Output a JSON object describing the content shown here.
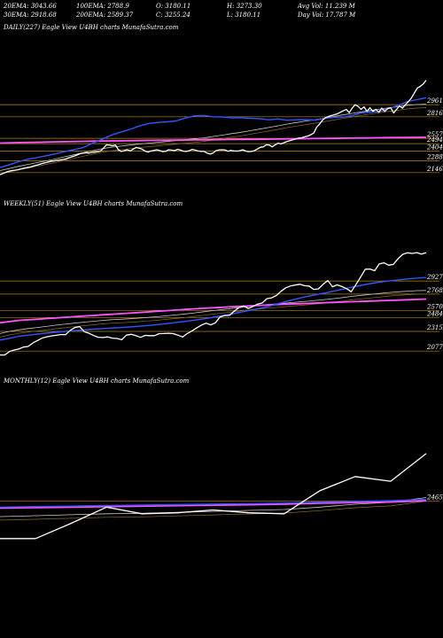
{
  "header": {
    "row1": [
      "20EMA: 3043.66",
      "100EMA: 2788.9",
      "O: 3180.11",
      "H: 3273.30",
      "Avg Vol: 11.239 M"
    ],
    "row2": [
      "30EMA: 2918.68",
      "200EMA: 2589.37",
      "C: 3255.24",
      "L: 3180.11",
      "Day Vol: 17.787 M"
    ]
  },
  "panels": [
    {
      "title": "DAILY(227) Eagle  View  U4BH charts MunafaSutra.com"
    },
    {
      "title": "WEEKLY(51) Eagle  View  U4BH charts MunafaSutra.com"
    },
    {
      "title": "MONTHLY(12) Eagle  View  U4BH charts MunafaSutra.com"
    }
  ],
  "colors": {
    "background": "#000000",
    "price": "#ffffff",
    "ema_fast": "#3355ff",
    "ema_slow": "#ff55ff",
    "level_line": "#b8860b",
    "ema_other": "#c8c8c8"
  },
  "chart_data": [
    {
      "type": "line",
      "title": "DAILY(227)",
      "ylim": [
        2080,
        3260
      ],
      "levels": [
        2961,
        2816,
        2557,
        2494,
        2404,
        2288,
        2146
      ],
      "level_labels": [
        "2961",
        "2816",
        "2557",
        "2494",
        "2404",
        "2288",
        "2146"
      ],
      "series": [
        {
          "role": "price",
          "values": [
            2120,
            2135,
            2150,
            2162,
            2170,
            2175,
            2180,
            2190,
            2198,
            2205,
            2210,
            2220,
            2232,
            2241,
            2252,
            2262,
            2270,
            2280,
            2285,
            2292,
            2296,
            2302,
            2308,
            2320,
            2332,
            2343,
            2356,
            2372,
            2380,
            2385,
            2380,
            2388,
            2392,
            2398,
            2405,
            2440,
            2480,
            2475,
            2468,
            2478,
            2420,
            2400,
            2410,
            2420,
            2406,
            2428,
            2448,
            2438,
            2428,
            2404,
            2392,
            2405,
            2412,
            2420,
            2410,
            2398,
            2402,
            2420,
            2416,
            2410,
            2425,
            2416,
            2402,
            2400,
            2410,
            2425,
            2415,
            2405,
            2400,
            2400,
            2380,
            2368,
            2382,
            2410,
            2418,
            2420,
            2418,
            2402,
            2412,
            2406,
            2404,
            2408,
            2420,
            2404,
            2398,
            2400,
            2410,
            2430,
            2450,
            2455,
            2480,
            2476,
            2455,
            2480,
            2500,
            2490,
            2505,
            2520,
            2530,
            2540,
            2550,
            2560,
            2565,
            2575,
            2585,
            2600,
            2620,
            2690,
            2730,
            2775,
            2805,
            2820,
            2830,
            2840,
            2852,
            2870,
            2888,
            2905,
            2865,
            2920,
            2960,
            2940,
            2905,
            2935,
            2880,
            2925,
            2880,
            2905,
            2870,
            2920,
            2880,
            2915,
            2925,
            2860,
            2905,
            2945,
            2920,
            2960,
            3000,
            3040,
            3100,
            3160,
            3180,
            3210,
            3255
          ]
        },
        {
          "role": "ema_fast",
          "values": [
            2208,
            2241,
            2278,
            2306,
            2327,
            2348,
            2371,
            2398,
            2422,
            2448,
            2500,
            2545,
            2594,
            2631,
            2664,
            2704,
            2735,
            2748,
            2755,
            2766,
            2801,
            2827,
            2832,
            2816,
            2814,
            2804,
            2805,
            2798,
            2793,
            2780,
            2789,
            2774,
            2780,
            2782,
            2776,
            2796,
            2808,
            2811,
            2828,
            2862,
            2872,
            2881,
            2916,
            2954,
            3000,
            3021,
            3044
          ]
        },
        {
          "role": "ema_slow",
          "values": [
            2500,
            2506,
            2511,
            2516,
            2520,
            2524,
            2527,
            2530,
            2533,
            2535,
            2538,
            2540,
            2543,
            2545,
            2548,
            2551,
            2554,
            2556,
            2559,
            2562,
            2566,
            2568,
            2570
          ]
        },
        {
          "role": "ema_other",
          "values": [
            2170,
            2195,
            2221,
            2244,
            2266,
            2287,
            2310,
            2336,
            2360,
            2385,
            2410,
            2432,
            2450,
            2463,
            2477,
            2488,
            2499,
            2509,
            2519,
            2531,
            2540,
            2551,
            2563,
            2580,
            2596,
            2614,
            2630,
            2649,
            2668,
            2687,
            2707,
            2728,
            2747,
            2765,
            2781,
            2800,
            2819,
            2838,
            2856,
            2874,
            2891,
            2908,
            2924,
            2937,
            2953,
            2962,
            2968
          ]
        }
      ]
    },
    {
      "type": "line",
      "title": "WEEKLY(51)",
      "ylim": [
        1950,
        3250
      ],
      "levels": [
        2927,
        2768,
        2570,
        2484,
        2315,
        2077
      ],
      "level_labels": [
        "2927",
        "2768",
        "2570",
        "2484",
        "2315",
        "2077"
      ],
      "series": [
        {
          "role": "price",
          "values": [
            2030,
            2030,
            2070,
            2090,
            2102,
            2125,
            2133,
            2175,
            2205,
            2235,
            2250,
            2261,
            2268,
            2278,
            2276,
            2328,
            2363,
            2373,
            2312,
            2293,
            2265,
            2244,
            2241,
            2249,
            2234,
            2229,
            2214,
            2270,
            2280,
            2264,
            2243,
            2267,
            2264,
            2264,
            2288,
            2290,
            2293,
            2288,
            2270,
            2248,
            2290,
            2322,
            2357,
            2392,
            2415,
            2395,
            2420,
            2490,
            2508,
            2510,
            2560,
            2603,
            2624,
            2595,
            2617,
            2646,
            2660,
            2713,
            2722,
            2750,
            2801,
            2844,
            2865,
            2877,
            2887,
            2870,
            2865,
            2825,
            2831,
            2887,
            2932,
            2857,
            2880,
            2859,
            2834,
            2797,
            2883,
            2974,
            3069,
            3072,
            3051,
            3134,
            3147,
            3118,
            3129,
            3197,
            3250,
            3268,
            3261,
            3270,
            3252,
            3270
          ]
        },
        {
          "role": "ema_fast",
          "values": [
            2210,
            2232,
            2256,
            2269,
            2282,
            2294,
            2305,
            2315,
            2324,
            2333,
            2342,
            2349,
            2356,
            2362,
            2370,
            2378,
            2387,
            2398,
            2410,
            2424,
            2437,
            2452,
            2468,
            2487,
            2506,
            2526,
            2549,
            2571,
            2593,
            2619,
            2650,
            2683,
            2710,
            2736,
            2758,
            2779,
            2803,
            2827,
            2852,
            2874,
            2895,
            2914,
            2927,
            2940,
            2952,
            2961,
            2970
          ]
        },
        {
          "role": "ema_slow",
          "values": [
            2420,
            2435,
            2448,
            2456,
            2463,
            2471,
            2478,
            2486,
            2494,
            2501,
            2508,
            2516,
            2523,
            2530,
            2537,
            2544,
            2552,
            2560,
            2567,
            2574,
            2582,
            2589,
            2596,
            2602,
            2608,
            2614,
            2620,
            2626,
            2631,
            2637,
            2642,
            2646,
            2650,
            2654,
            2659,
            2663,
            2667,
            2671,
            2675,
            2679,
            2683,
            2687,
            2691,
            2695,
            2699,
            2703,
            2707
          ]
        },
        {
          "role": "ema_other",
          "values": [
            2290,
            2315,
            2334,
            2350,
            2363,
            2375,
            2390,
            2402,
            2415,
            2427,
            2438,
            2449,
            2457,
            2463,
            2469,
            2476,
            2485,
            2494,
            2504,
            2515,
            2527,
            2540,
            2554,
            2568,
            2581,
            2594,
            2608,
            2621,
            2632,
            2641,
            2651,
            2660,
            2670,
            2680,
            2690,
            2701,
            2713,
            2726,
            2741,
            2753,
            2764,
            2776,
            2787,
            2796,
            2803,
            2809,
            2812
          ]
        }
      ]
    },
    {
      "type": "line",
      "title": "MONTHLY(12)",
      "ylim": [
        2050,
        3200
      ],
      "levels": [
        2465
      ],
      "level_labels": [
        "2465"
      ],
      "series": [
        {
          "role": "price",
          "values": [
            2070,
            2070,
            2230,
            2400,
            2330,
            2340,
            2370,
            2340,
            2330,
            2570,
            2720,
            2670,
            2960
          ]
        },
        {
          "role": "ema_fast",
          "values": [
            2400,
            2405,
            2410,
            2416,
            2421,
            2426,
            2431,
            2436,
            2441,
            2452,
            2460,
            2466,
            2480
          ]
        },
        {
          "role": "ema_slow",
          "values": [
            2390,
            2395,
            2400,
            2405,
            2410,
            2415,
            2420,
            2425,
            2430,
            2440,
            2448,
            2453,
            2466
          ]
        },
        {
          "role": "ema_other",
          "values": [
            2300,
            2310,
            2320,
            2330,
            2335,
            2345,
            2355,
            2365,
            2375,
            2400,
            2430,
            2450,
            2500
          ]
        }
      ]
    }
  ]
}
